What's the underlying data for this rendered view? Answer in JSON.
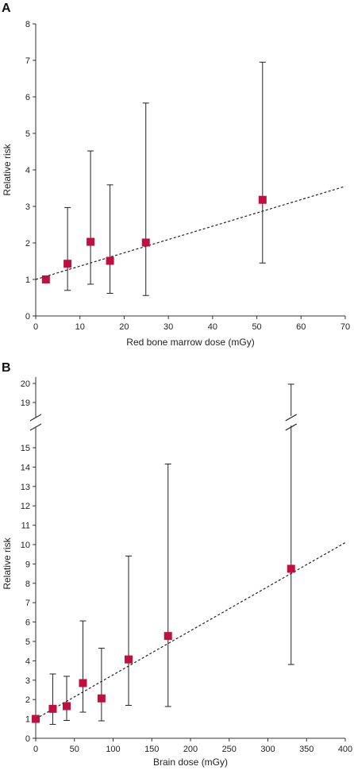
{
  "chart_data": [
    {
      "panel": "A",
      "type": "scatter",
      "xlabel": "Red bone marrow dose (mGy)",
      "ylabel": "Relative risk",
      "xlim": [
        0,
        70
      ],
      "ylim": [
        0,
        8
      ],
      "xticks": [
        0,
        10,
        20,
        30,
        40,
        50,
        60,
        70
      ],
      "yticks": [
        0,
        1,
        2,
        3,
        4,
        5,
        6,
        7,
        8
      ],
      "marker_color": "#c0103f",
      "points": [
        {
          "x": 2.3,
          "y": 1.0
        },
        {
          "x": 7.2,
          "y": 1.43,
          "lo": 0.7,
          "hi": 2.97
        },
        {
          "x": 12.4,
          "y": 2.03,
          "lo": 0.87,
          "hi": 4.52
        },
        {
          "x": 16.8,
          "y": 1.51,
          "lo": 0.62,
          "hi": 3.59
        },
        {
          "x": 24.9,
          "y": 2.01,
          "lo": 0.56,
          "hi": 5.83
        },
        {
          "x": 51.3,
          "y": 3.18,
          "lo": 1.45,
          "hi": 6.95
        }
      ],
      "trend": {
        "x": [
          0,
          70
        ],
        "y": [
          1.0,
          3.55
        ]
      }
    },
    {
      "panel": "B",
      "type": "scatter",
      "xlabel": "Brain dose (mGy)",
      "ylabel": "Relative risk",
      "xlim": [
        0,
        400
      ],
      "ylim": [
        0,
        20
      ],
      "xticks": [
        0,
        50,
        100,
        150,
        200,
        250,
        300,
        350,
        400
      ],
      "yticks": [
        0,
        1,
        2,
        3,
        4,
        5,
        6,
        7,
        8,
        9,
        10,
        11,
        12,
        13,
        14,
        15,
        19,
        20
      ],
      "axis_break": [
        15,
        19
      ],
      "marker_color": "#c0103f",
      "points": [
        {
          "x": 0,
          "y": 1.0
        },
        {
          "x": 22,
          "y": 1.52,
          "lo": 0.72,
          "hi": 3.32
        },
        {
          "x": 40,
          "y": 1.66,
          "lo": 0.92,
          "hi": 3.2
        },
        {
          "x": 61,
          "y": 2.85,
          "lo": 1.35,
          "hi": 6.06
        },
        {
          "x": 85,
          "y": 2.06,
          "lo": 0.9,
          "hi": 4.65
        },
        {
          "x": 120,
          "y": 4.07,
          "lo": 1.7,
          "hi": 9.41
        },
        {
          "x": 171,
          "y": 5.28,
          "lo": 1.64,
          "hi": 14.16
        },
        {
          "x": 330,
          "y": 8.75,
          "lo": 3.81,
          "hi": 19.96
        }
      ],
      "trend": {
        "x": [
          0,
          400
        ],
        "y": [
          1.0,
          10.1
        ]
      }
    }
  ]
}
